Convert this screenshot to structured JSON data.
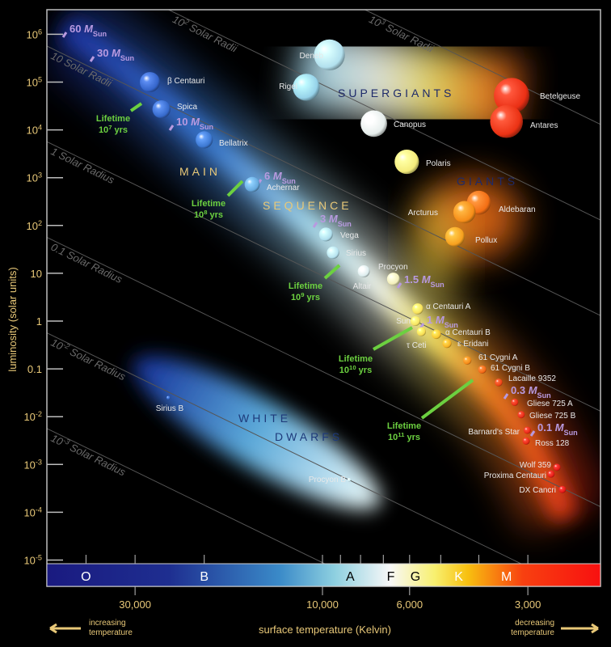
{
  "chart_data": {
    "type": "scatter",
    "title": "",
    "xlabel": "surface temperature (Kelvin)",
    "ylabel": "luminosity (solar units)",
    "x_scale": "log-reversed",
    "y_scale": "log",
    "xlim": [
      60000,
      2000
    ],
    "ylim": [
      1e-05,
      3000000
    ],
    "x_ticks": [
      {
        "value": 30000,
        "label": "30,000"
      },
      {
        "value": 10000,
        "label": "10,000"
      },
      {
        "value": 6000,
        "label": "6,000"
      },
      {
        "value": 3000,
        "label": "3,000"
      }
    ],
    "y_ticks": [
      {
        "value": 1000000,
        "base": "10",
        "exp": "6"
      },
      {
        "value": 100000,
        "base": "10",
        "exp": "5"
      },
      {
        "value": 10000,
        "base": "10",
        "exp": "4"
      },
      {
        "value": 1000,
        "base": "10",
        "exp": "3"
      },
      {
        "value": 100,
        "base": "10",
        "exp": "2"
      },
      {
        "value": 10,
        "base": "10",
        "exp": ""
      },
      {
        "value": 1,
        "base": "1",
        "exp": ""
      },
      {
        "value": 0.1,
        "base": "0.1",
        "exp": ""
      },
      {
        "value": 0.01,
        "base": "10",
        "exp": "-2"
      },
      {
        "value": 0.001,
        "base": "10",
        "exp": "-3"
      },
      {
        "value": 0.0001,
        "base": "10",
        "exp": "-4"
      },
      {
        "value": 1e-05,
        "base": "10",
        "exp": "-5"
      }
    ],
    "spectral_classes": [
      {
        "label": "O",
        "temperature": 40000,
        "color": "#ffffff"
      },
      {
        "label": "B",
        "temperature": 20000,
        "color": "#ffffff"
      },
      {
        "label": "A",
        "temperature": 8500,
        "color": "#000000"
      },
      {
        "label": "F",
        "temperature": 6700,
        "color": "#000000"
      },
      {
        "label": "G",
        "temperature": 5800,
        "color": "#000000"
      },
      {
        "label": "K",
        "temperature": 4500,
        "color": "#ffffff"
      },
      {
        "label": "M",
        "temperature": 3400,
        "color": "#ffffff"
      }
    ],
    "radius_lines": [
      {
        "radius": 1000,
        "label": "10",
        "exp": "3",
        "unit": " Solar Radii"
      },
      {
        "radius": 100,
        "label": "10",
        "exp": "2",
        "unit": " Solar Radii"
      },
      {
        "radius": 10,
        "label": "10",
        "exp": "",
        "unit": " Solar Radii"
      },
      {
        "radius": 1,
        "label": "1",
        "exp": "",
        "unit": " Solar Radius"
      },
      {
        "radius": 0.1,
        "label": "0.1",
        "exp": "",
        "unit": " Solar Radius"
      },
      {
        "radius": 0.01,
        "label": "10",
        "exp": "-2",
        "unit": " Solar Radius"
      },
      {
        "radius": 0.001,
        "label": "10",
        "exp": "-3",
        "unit": " Solar Radius"
      }
    ],
    "regions": [
      {
        "label": "SUPERGIANTS",
        "color": "#1e2a6a"
      },
      {
        "label": "GIANTS",
        "color": "#1e2a6a"
      },
      {
        "label": "MAIN",
        "color": "#e8c878"
      },
      {
        "label": "SEQUENCE",
        "color": "#e8c878"
      },
      {
        "label": "WHITE",
        "color": "#1e3a7a"
      },
      {
        "label": "DWARFS",
        "color": "#1e3a7a"
      }
    ],
    "stars": [
      {
        "name": "Deneb",
        "temperature": 9600,
        "luminosity": 370000
      },
      {
        "name": "Rigel",
        "temperature": 11000,
        "luminosity": 78000
      },
      {
        "name": "Canopus",
        "temperature": 7400,
        "luminosity": 13500
      },
      {
        "name": "Polaris",
        "temperature": 6100,
        "luminosity": 2150
      },
      {
        "name": "Betelgeuse",
        "temperature": 3300,
        "luminosity": 52000
      },
      {
        "name": "Antares",
        "temperature": 3400,
        "luminosity": 15000
      },
      {
        "name": "Aldebaran",
        "temperature": 4000,
        "luminosity": 300
      },
      {
        "name": "Arcturus",
        "temperature": 4350,
        "luminosity": 190
      },
      {
        "name": "Pollux",
        "temperature": 4600,
        "luminosity": 58
      },
      {
        "name": "β Centauri",
        "temperature": 27500,
        "luminosity": 100000
      },
      {
        "name": "Spica",
        "temperature": 25700,
        "luminosity": 27000
      },
      {
        "name": "Bellatrix",
        "temperature": 20000,
        "luminosity": 6200
      },
      {
        "name": "Achernar",
        "temperature": 15100,
        "luminosity": 720
      },
      {
        "name": "Vega",
        "temperature": 9800,
        "luminosity": 65
      },
      {
        "name": "Sirius",
        "temperature": 9400,
        "luminosity": 27
      },
      {
        "name": "Altair",
        "temperature": 7850,
        "luminosity": 11
      },
      {
        "name": "Procyon",
        "temperature": 6600,
        "luminosity": 7.6
      },
      {
        "name": "α Centauri A",
        "temperature": 5720,
        "luminosity": 1.8
      },
      {
        "name": "Sun",
        "temperature": 5800,
        "luminosity": 1
      },
      {
        "name": "τ Ceti",
        "temperature": 5600,
        "luminosity": 0.6
      },
      {
        "name": "α Centauri B",
        "temperature": 5130,
        "luminosity": 0.53
      },
      {
        "name": "ε Eridani",
        "temperature": 4820,
        "luminosity": 0.34
      },
      {
        "name": "61 Cygni A",
        "temperature": 4280,
        "luminosity": 0.15
      },
      {
        "name": "61 Cygni B",
        "temperature": 3920,
        "luminosity": 0.097
      },
      {
        "name": "Lacaille 9352",
        "temperature": 3560,
        "luminosity": 0.052
      },
      {
        "name": "Gliese 725 A",
        "temperature": 3240,
        "luminosity": 0.02
      },
      {
        "name": "Gliese 725 B",
        "temperature": 3120,
        "luminosity": 0.011
      },
      {
        "name": "Barnard's Star",
        "temperature": 3010,
        "luminosity": 0.0052
      },
      {
        "name": "Ross 128",
        "temperature": 3030,
        "luminosity": 0.0031
      },
      {
        "name": "Wolf 359",
        "temperature": 2530,
        "luminosity": 0.00087
      },
      {
        "name": "Proxima Centauri",
        "temperature": 2620,
        "luminosity": 0.00063
      },
      {
        "name": "DX Cancri",
        "temperature": 2450,
        "luminosity": 0.0003
      },
      {
        "name": "Sirius B",
        "temperature": 24700,
        "luminosity": 0.025
      },
      {
        "name": "Procyon B",
        "temperature": 8550,
        "luminosity": 0.00048
      }
    ],
    "mass_annotations": [
      {
        "value": "60",
        "unit": "M",
        "sub": "Sun",
        "temperature": 52000,
        "luminosity": 1200000
      },
      {
        "value": "30",
        "unit": "M",
        "sub": "Sun",
        "temperature": 44000,
        "luminosity": 300000
      },
      {
        "value": "10",
        "unit": "M",
        "sub": "Sun",
        "temperature": 23000,
        "luminosity": 12000
      },
      {
        "value": "6",
        "unit": "M",
        "sub": "Sun",
        "temperature": 14500,
        "luminosity": 1200
      },
      {
        "value": "3",
        "unit": "M",
        "sub": "Sun",
        "temperature": 10000,
        "luminosity": 100
      },
      {
        "value": "1.5",
        "unit": "M",
        "sub": "Sun",
        "temperature": 6750,
        "luminosity": 7
      },
      {
        "value": "1",
        "unit": "M",
        "sub": "Sun",
        "temperature": 5600,
        "luminosity": 1
      },
      {
        "value": "0.3",
        "unit": "M",
        "sub": "Sun",
        "temperature": 3400,
        "luminosity": 0.035
      },
      {
        "value": "0.1",
        "unit": "M",
        "sub": "Sun",
        "temperature": 2900,
        "luminosity": 0.005
      }
    ],
    "lifetimes": [
      {
        "label": "Lifetime",
        "base": "10",
        "exp": "7",
        "unit": " yrs"
      },
      {
        "label": "Lifetime",
        "base": "10",
        "exp": "8",
        "unit": " yrs"
      },
      {
        "label": "Lifetime",
        "base": "10",
        "exp": "9",
        "unit": " yrs"
      },
      {
        "label": "Lifetime",
        "base": "10",
        "exp": "10",
        "unit": " yrs"
      },
      {
        "label": "Lifetime",
        "base": "10",
        "exp": "11",
        "unit": " yrs"
      }
    ],
    "footer": {
      "left": [
        "increasing",
        "temperature"
      ],
      "right": [
        "decreasing",
        "temperature"
      ]
    },
    "colors": {
      "axis_text": "#e8c878",
      "lifetime": "#6cd040",
      "mass": "#b89ae0",
      "radius_line": "#555555"
    }
  }
}
